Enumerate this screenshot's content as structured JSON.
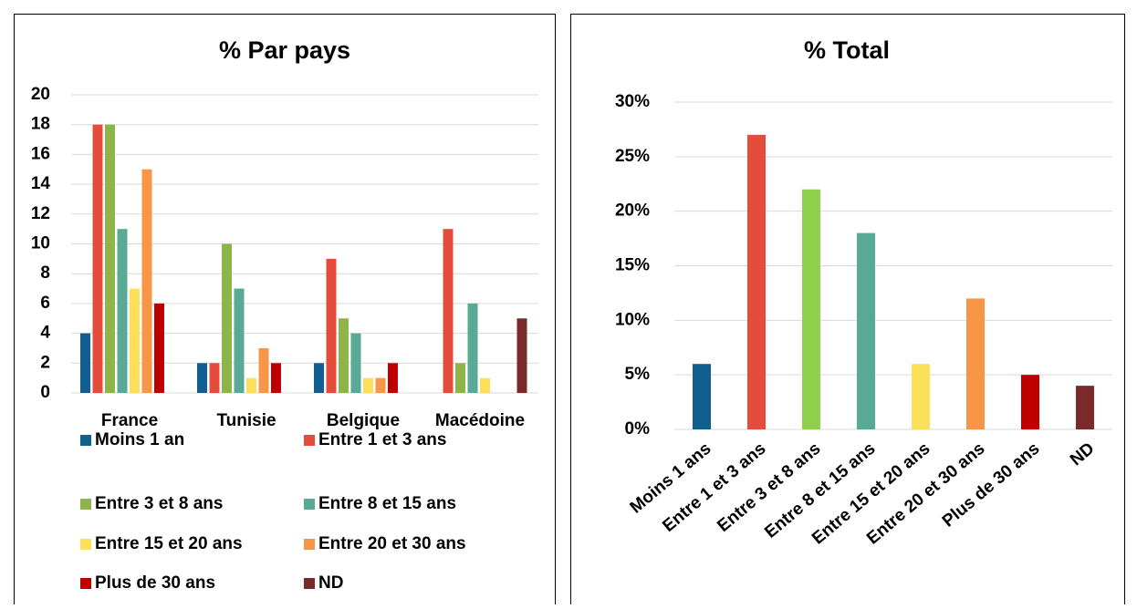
{
  "chart_data": [
    {
      "type": "bar",
      "title": "% Par pays",
      "categories": [
        "France",
        "Tunisie",
        "Belgique",
        "Macédoine"
      ],
      "series": [
        {
          "name": "Moins 1 an",
          "color": "#0f5f8f",
          "values": [
            4,
            2,
            2,
            0
          ]
        },
        {
          "name": "Entre 1 et 3 ans",
          "color": "#e64c3c",
          "values": [
            18,
            2,
            9,
            11
          ]
        },
        {
          "name": "Entre 3 et 8 ans",
          "color": "#8eb44c",
          "values": [
            18,
            10,
            5,
            2
          ]
        },
        {
          "name": "Entre 8 et 15 ans",
          "color": "#59aa94",
          "values": [
            11,
            7,
            4,
            6
          ]
        },
        {
          "name": "Entre 15 et 20 ans",
          "color": "#fde05a",
          "values": [
            7,
            1,
            1,
            1
          ]
        },
        {
          "name": "Entre 20 et 30 ans",
          "color": "#f79646",
          "values": [
            15,
            3,
            1,
            0
          ]
        },
        {
          "name": "Plus de 30 ans",
          "color": "#c00000",
          "values": [
            6,
            2,
            2,
            0
          ]
        },
        {
          "name": "ND",
          "color": "#7b2a2a",
          "values": [
            0,
            0,
            0,
            5
          ]
        }
      ],
      "ylim": [
        0,
        20
      ],
      "yticks": [
        0,
        2,
        4,
        6,
        8,
        10,
        12,
        14,
        16,
        18,
        20
      ],
      "grid": true,
      "legend": "bottom"
    },
    {
      "type": "bar",
      "title": "% Total",
      "categories": [
        "Moins 1 ans",
        "Entre 1 et 3 ans",
        "Entre 3 et 8 ans",
        "Entre 8 et 15 ans",
        "Entre 15 et 20 ans",
        "Entre 20 et 30 ans",
        "Plus de 30 ans",
        "ND"
      ],
      "values": [
        6,
        27,
        22,
        18,
        6,
        12,
        5,
        4
      ],
      "colors": [
        "#0f5f8f",
        "#e64c3c",
        "#8ed04c",
        "#59aa94",
        "#fde05a",
        "#f79646",
        "#c00000",
        "#7b2a2a"
      ],
      "ylim": [
        0,
        30
      ],
      "yticks": [
        {
          "value": 0,
          "label": "0%"
        },
        {
          "value": 5,
          "label": "5%"
        },
        {
          "value": 10,
          "label": "10%"
        },
        {
          "value": 15,
          "label": "15%"
        },
        {
          "value": 20,
          "label": "20%"
        },
        {
          "value": 25,
          "label": "25%"
        },
        {
          "value": 30,
          "label": "30%"
        }
      ],
      "grid": true
    }
  ]
}
